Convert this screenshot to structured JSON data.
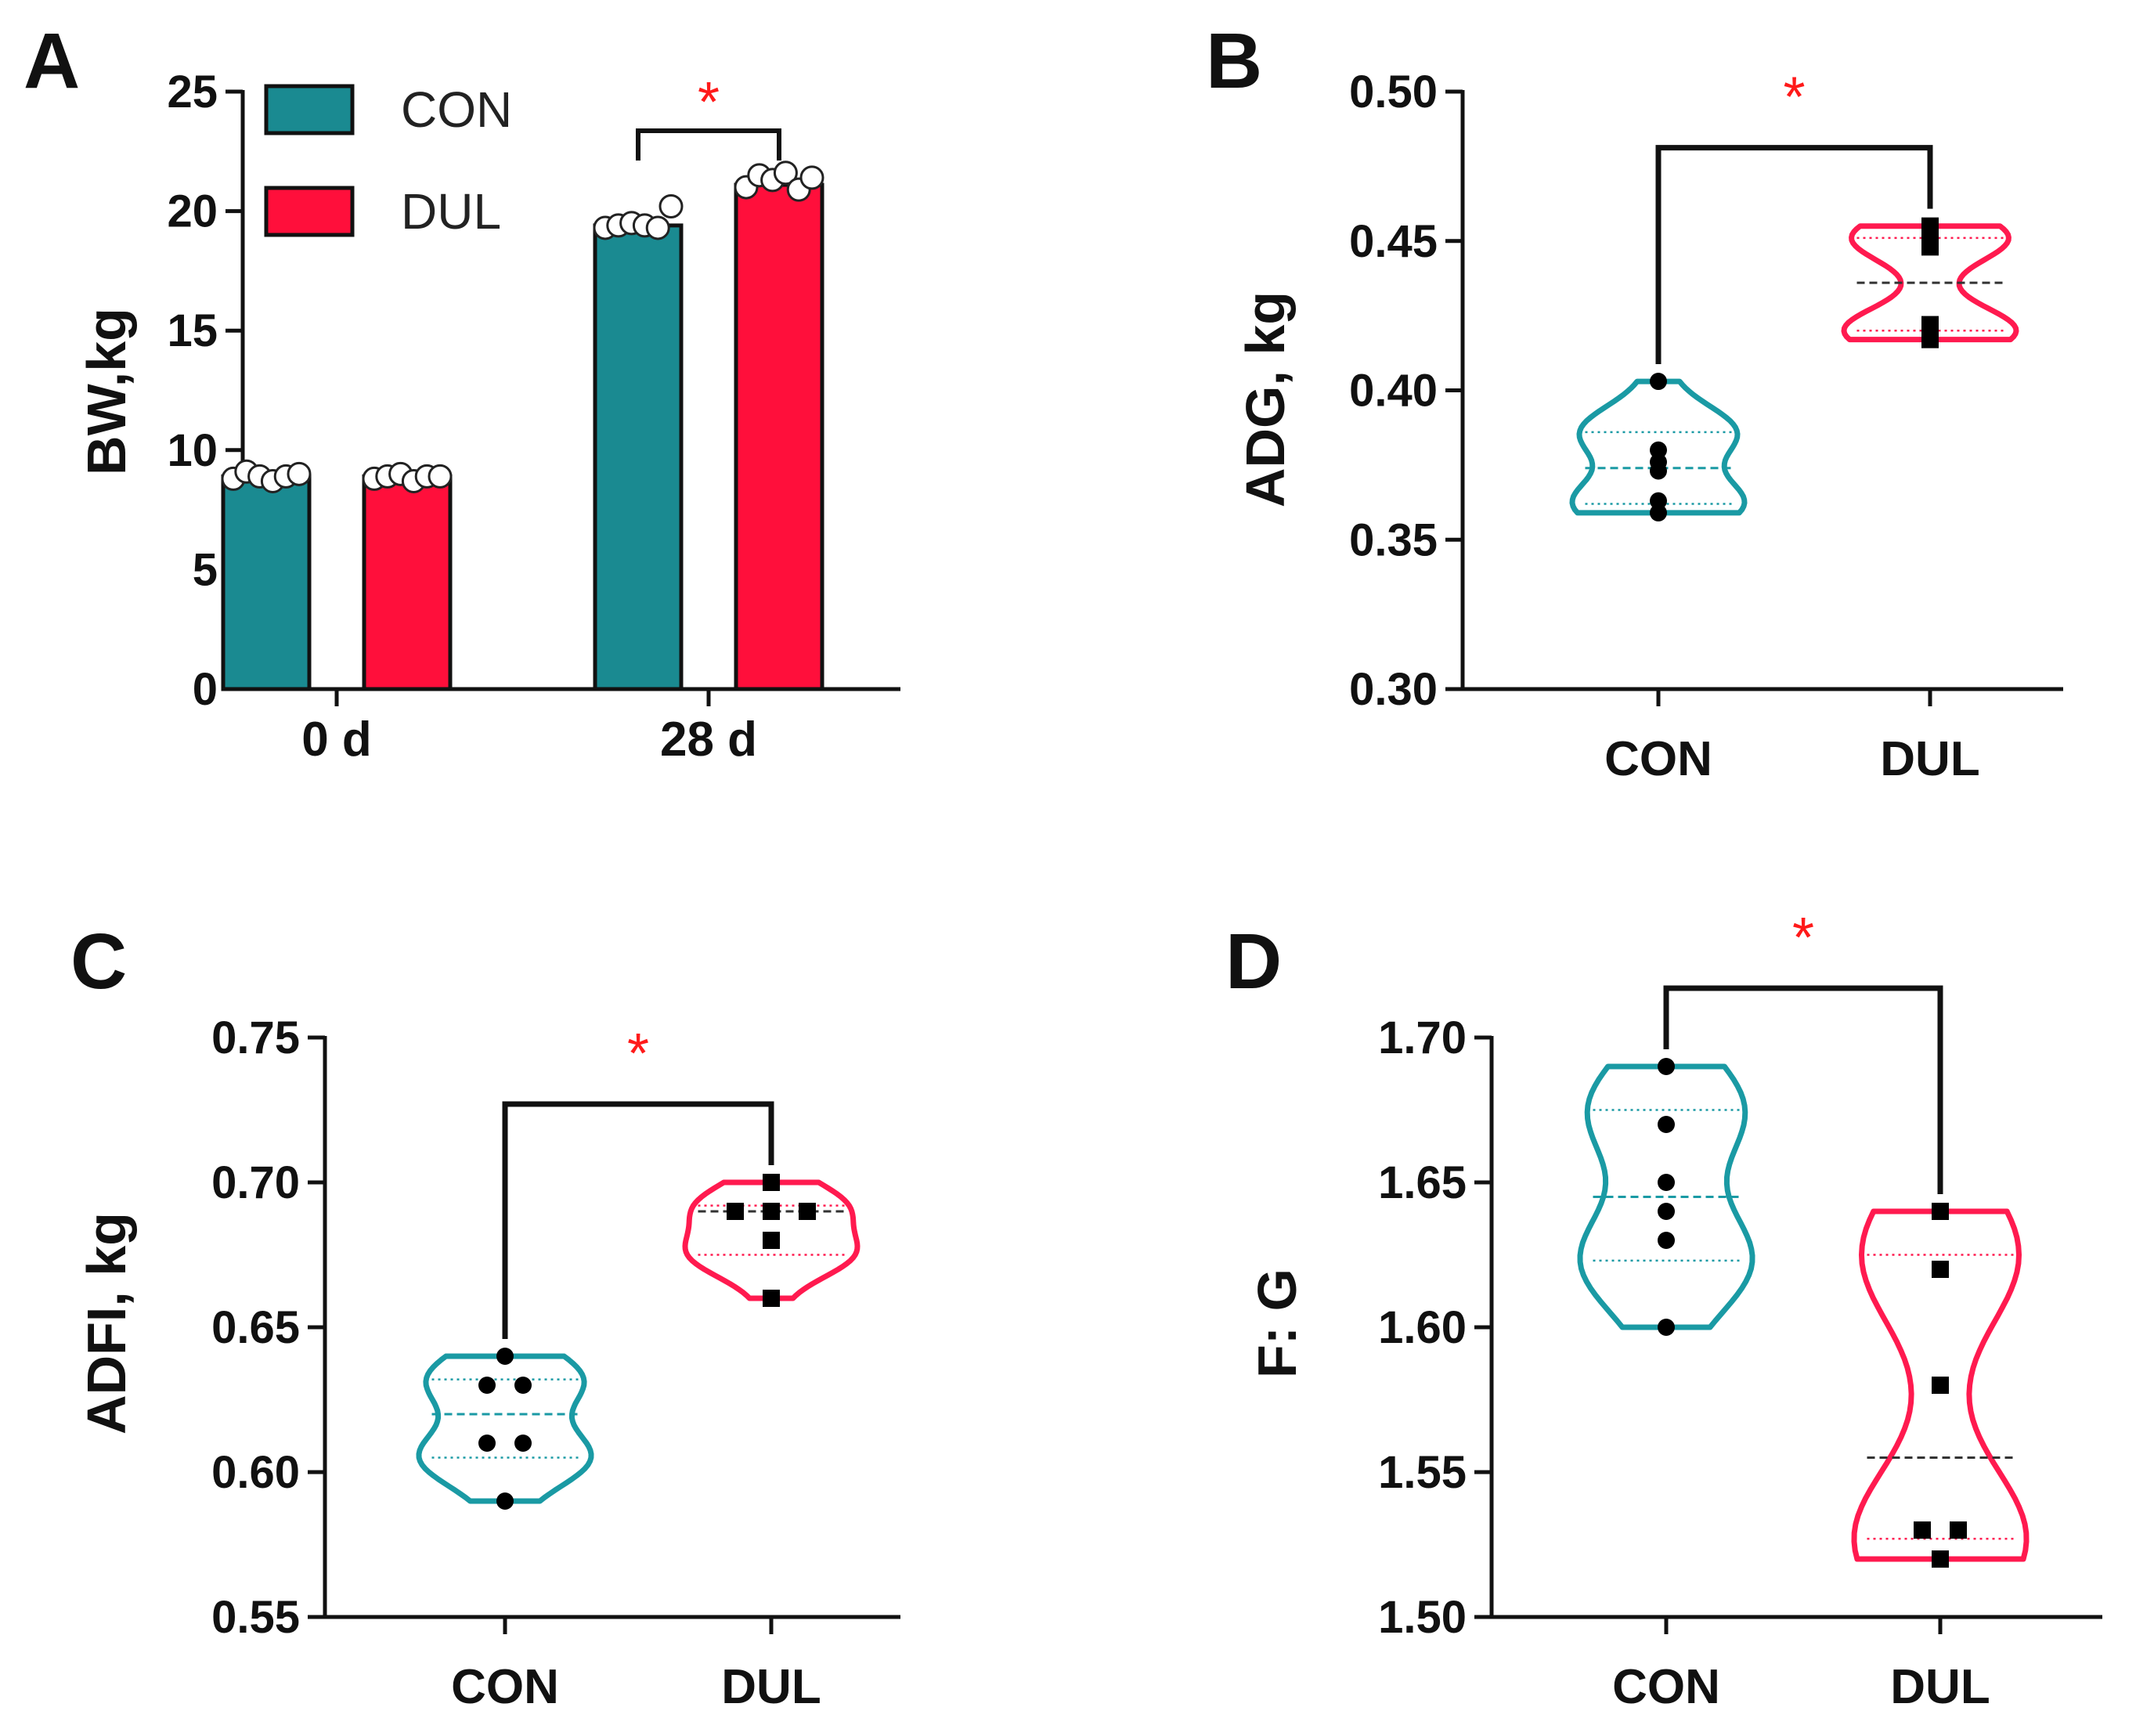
{
  "chart_data": [
    {
      "panel": "A",
      "type": "bar",
      "title": "",
      "xlabel": "",
      "ylabel": "BW,kg",
      "ylim": [
        0,
        25
      ],
      "yticks": [
        "0",
        "5",
        "10",
        "15",
        "20",
        "25"
      ],
      "categories": [
        "0 d",
        "28 d"
      ],
      "series": [
        {
          "name": "CON",
          "color": "#1a8a91",
          "values": [
            8.9,
            19.4
          ],
          "points": [
            [
              8.8,
              9.1,
              8.9,
              8.7,
              8.9,
              9.0
            ],
            [
              19.3,
              19.4,
              19.5,
              19.4,
              19.3,
              20.2
            ]
          ]
        },
        {
          "name": "DUL",
          "color": "#ff0f3b",
          "values": [
            8.9,
            21.1
          ],
          "points": [
            [
              8.8,
              8.9,
              9.0,
              8.7,
              8.9,
              8.9
            ],
            [
              21.0,
              21.5,
              21.3,
              21.6,
              20.9,
              21.4
            ]
          ]
        }
      ],
      "legend": [
        "CON",
        "DUL"
      ],
      "legend_position": "top-left",
      "significance": {
        "text": "*",
        "between": [
          "CON",
          "DUL"
        ],
        "category": "28 d"
      }
    },
    {
      "panel": "B",
      "type": "violin",
      "xlabel": "",
      "ylabel": "ADG, kg",
      "ylim": [
        0.3,
        0.5
      ],
      "yticks": [
        "0.30",
        "0.35",
        "0.40",
        "0.45",
        "0.50"
      ],
      "categories": [
        "CON",
        "DUL"
      ],
      "series": [
        {
          "name": "CON",
          "color": "#1a9aa4",
          "marker": "circle",
          "points": [
            0.403,
            0.38,
            0.376,
            0.373,
            0.363,
            0.359
          ],
          "median": 0.374,
          "q1": 0.362,
          "q3": 0.386,
          "min": 0.359,
          "max": 0.403
        },
        {
          "name": "DUL",
          "color": "#ff1a4f",
          "marker": "square",
          "points": [
            0.455,
            0.45,
            0.448,
            0.422,
            0.42,
            0.417
          ],
          "median": 0.436,
          "q1": 0.42,
          "q3": 0.451,
          "min": 0.417,
          "max": 0.455
        }
      ],
      "significance": {
        "text": "*",
        "between": [
          "CON",
          "DUL"
        ]
      }
    },
    {
      "panel": "C",
      "type": "violin",
      "xlabel": "",
      "ylabel": "ADFI, kg",
      "ylim": [
        0.55,
        0.75
      ],
      "yticks": [
        "0.55",
        "0.60",
        "0.65",
        "0.70",
        "0.75"
      ],
      "categories": [
        "CON",
        "DUL"
      ],
      "series": [
        {
          "name": "CON",
          "color": "#1a9aa4",
          "marker": "circle",
          "points": [
            0.64,
            0.63,
            0.63,
            0.61,
            0.61,
            0.59
          ],
          "median": 0.62,
          "q1": 0.605,
          "q3": 0.632,
          "min": 0.59,
          "max": 0.64
        },
        {
          "name": "DUL",
          "color": "#ff1a4f",
          "marker": "square",
          "points": [
            0.7,
            0.69,
            0.69,
            0.69,
            0.68,
            0.66
          ],
          "median": 0.69,
          "q1": 0.675,
          "q3": 0.692,
          "min": 0.66,
          "max": 0.7
        }
      ],
      "significance": {
        "text": "*",
        "between": [
          "CON",
          "DUL"
        ]
      }
    },
    {
      "panel": "D",
      "type": "violin",
      "xlabel": "",
      "ylabel": "F: G",
      "ylim": [
        1.5,
        1.7
      ],
      "yticks": [
        "1.50",
        "1.55",
        "1.60",
        "1.65",
        "1.70"
      ],
      "categories": [
        "CON",
        "DUL"
      ],
      "series": [
        {
          "name": "CON",
          "color": "#1a9aa4",
          "marker": "circle",
          "points": [
            1.69,
            1.67,
            1.65,
            1.64,
            1.63,
            1.6
          ],
          "median": 1.645,
          "q1": 1.623,
          "q3": 1.675,
          "min": 1.6,
          "max": 1.69
        },
        {
          "name": "DUL",
          "color": "#ff1a4f",
          "marker": "square",
          "points": [
            1.64,
            1.62,
            1.58,
            1.53,
            1.53,
            1.52
          ],
          "median": 1.555,
          "q1": 1.527,
          "q3": 1.625,
          "min": 1.52,
          "max": 1.64
        }
      ],
      "significance": {
        "text": "*",
        "between": [
          "CON",
          "DUL"
        ]
      }
    }
  ]
}
